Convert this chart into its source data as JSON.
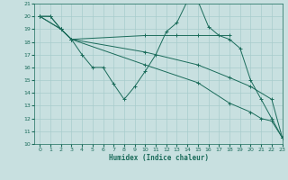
{
  "background_color": "#c8e0e0",
  "grid_color": "#a8cccc",
  "line_color": "#1a6b5a",
  "xlabel": "Humidex (Indice chaleur)",
  "ylim": [
    10,
    21
  ],
  "xlim": [
    -0.5,
    23
  ],
  "yticks": [
    10,
    11,
    12,
    13,
    14,
    15,
    16,
    17,
    18,
    19,
    20,
    21
  ],
  "xticks": [
    0,
    1,
    2,
    3,
    4,
    5,
    6,
    7,
    8,
    9,
    10,
    11,
    12,
    13,
    14,
    15,
    16,
    17,
    18,
    19,
    20,
    21,
    22,
    23
  ],
  "lines": [
    {
      "x": [
        0,
        1,
        2,
        3,
        4,
        5,
        6,
        7,
        8,
        9,
        10,
        11,
        12,
        13,
        14,
        15,
        16,
        17,
        18,
        19,
        20,
        21,
        22,
        23
      ],
      "y": [
        20,
        20,
        19,
        18.2,
        17,
        16,
        16,
        14.7,
        13.5,
        14.5,
        15.7,
        17,
        18.8,
        19.5,
        21.2,
        21.2,
        19.2,
        18.5,
        18.2,
        17.5,
        15,
        13.5,
        12,
        10.5
      ]
    },
    {
      "x": [
        0,
        1,
        2,
        3,
        10,
        13,
        15,
        18
      ],
      "y": [
        20,
        20,
        19,
        18.2,
        18.5,
        18.5,
        18.5,
        18.5
      ]
    },
    {
      "x": [
        0,
        2,
        3,
        10,
        15,
        18,
        20,
        22,
        23
      ],
      "y": [
        20,
        19,
        18.2,
        17.2,
        16.2,
        15.2,
        14.5,
        13.5,
        10.5
      ]
    },
    {
      "x": [
        0,
        2,
        3,
        10,
        15,
        18,
        20,
        21,
        22,
        23
      ],
      "y": [
        20,
        19,
        18.2,
        16.2,
        14.8,
        13.2,
        12.5,
        12.0,
        11.8,
        10.5
      ]
    }
  ]
}
